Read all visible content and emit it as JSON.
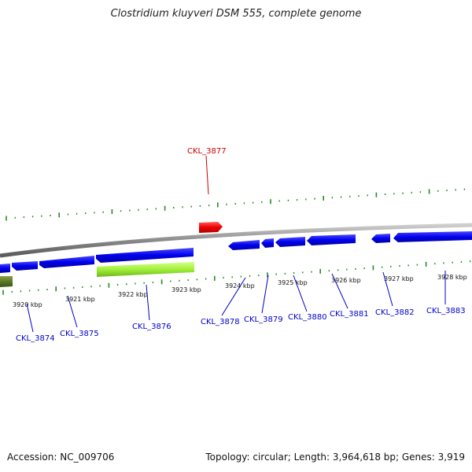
{
  "title": "Clostridium kluyveri DSM 555, complete genome",
  "footer": {
    "accession": "Accession: NC_009706",
    "stats": "Topology: circular; Length: 3,964,618 bp; Genes: 3,919"
  },
  "colors": {
    "backbone": "#888888",
    "gene_forward": "#ff0000",
    "gene_reverse": "#0000ff",
    "label_forward": "#cc0000",
    "label_reverse": "#0000cc",
    "feature_green": "#99ee33",
    "feature_olive": "#556b2f",
    "tick": "#228b22"
  },
  "ticks": [
    {
      "label": "3920 kbp"
    },
    {
      "label": "3921 kbp"
    },
    {
      "label": "3922 kbp"
    },
    {
      "label": "3923 kbp"
    },
    {
      "label": "3924 kbp"
    },
    {
      "label": "3925 kbp"
    },
    {
      "label": "3926 kbp"
    },
    {
      "label": "3927 kbp"
    },
    {
      "label": "3928 kbp"
    }
  ],
  "genes": [
    {
      "label": "CKL_3874",
      "strand": "reverse"
    },
    {
      "label": "CKL_3875",
      "strand": "reverse"
    },
    {
      "label": "CKL_3876",
      "strand": "reverse"
    },
    {
      "label": "CKL_3877",
      "strand": "forward"
    },
    {
      "label": "CKL_3878",
      "strand": "reverse"
    },
    {
      "label": "CKL_3879",
      "strand": "reverse"
    },
    {
      "label": "CKL_3880",
      "strand": "reverse"
    },
    {
      "label": "CKL_3881",
      "strand": "reverse"
    },
    {
      "label": "CKL_3882",
      "strand": "reverse"
    },
    {
      "label": "CKL_3883",
      "strand": "reverse"
    }
  ]
}
